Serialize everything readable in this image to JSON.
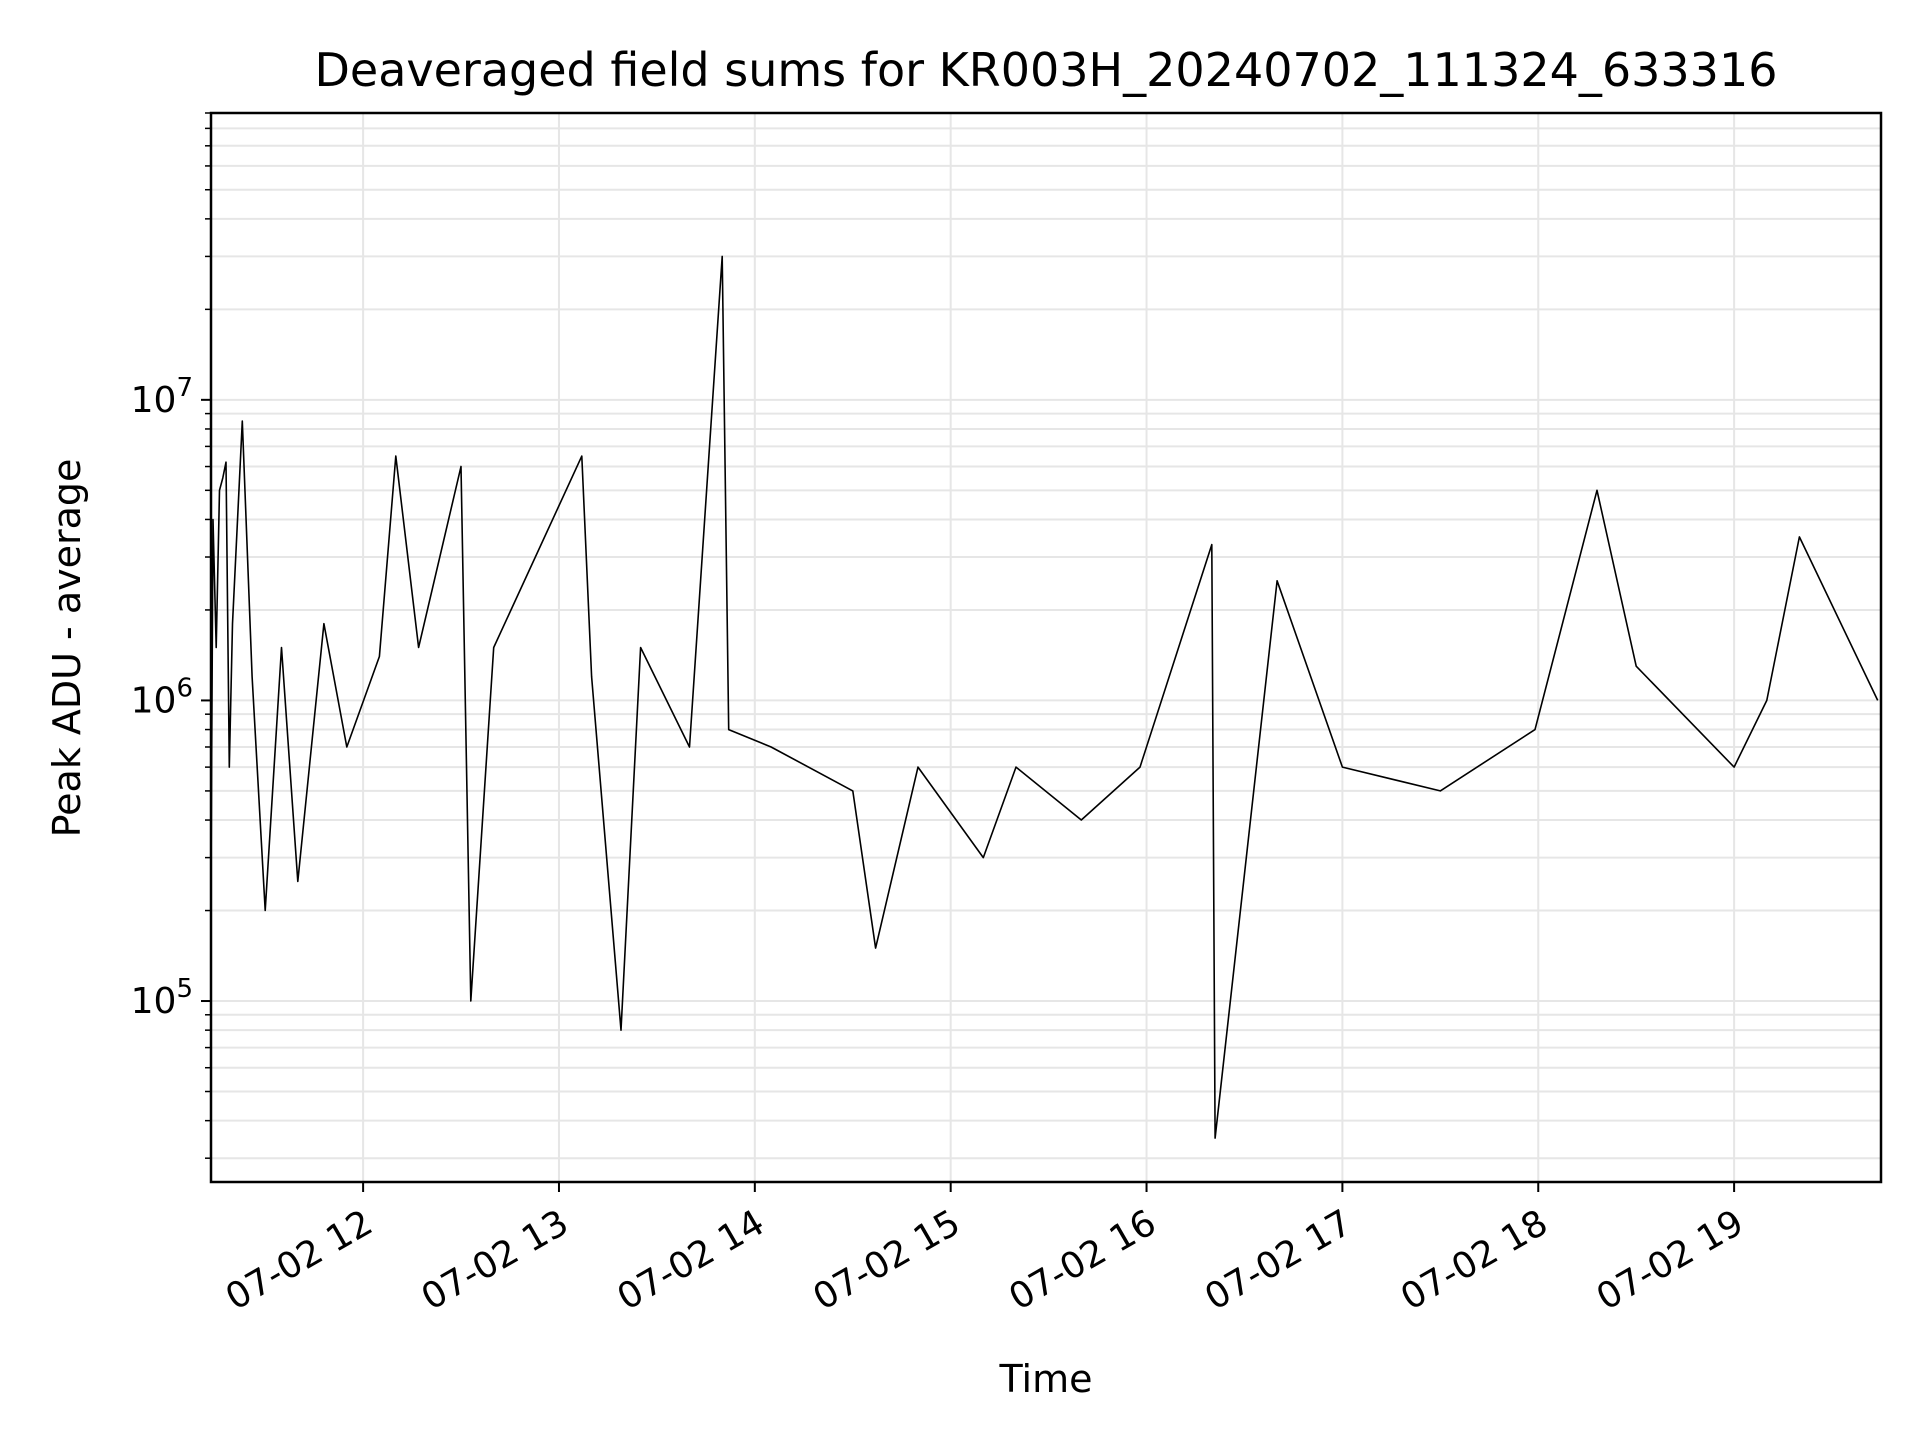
{
  "chart_data": {
    "type": "line",
    "title": "Deaveraged field sums for KR003H_20240702_111324_633316",
    "xlabel": "Time",
    "ylabel": "Peak ADU - average",
    "yscale": "log",
    "xlim": [
      "2024-07-02T11:13:24",
      "2024-07-02T19:45:00"
    ],
    "ylim": [
      25000,
      90000000
    ],
    "grid": true,
    "line_color": "#000000",
    "x_tick_labels": [
      "07-02 12",
      "07-02 13",
      "07-02 14",
      "07-02 15",
      "07-02 16",
      "07-02 17",
      "07-02 18",
      "07-02 19"
    ],
    "x_tick_times": [
      "2024-07-02T12:00",
      "2024-07-02T13:00",
      "2024-07-02T14:00",
      "2024-07-02T15:00",
      "2024-07-02T16:00",
      "2024-07-02T17:00",
      "2024-07-02T18:00",
      "2024-07-02T19:00"
    ],
    "y_ticks": [
      {
        "value": 100000,
        "base": "10",
        "exp": "5"
      },
      {
        "value": 1000000,
        "base": "10",
        "exp": "6"
      },
      {
        "value": 10000000,
        "base": "10",
        "exp": "7"
      }
    ],
    "series": [
      {
        "x": [
          "2024-07-02T11:13:24",
          "2024-07-02T11:14:00",
          "2024-07-02T11:15:00",
          "2024-07-02T11:16:00",
          "2024-07-02T11:17:00",
          "2024-07-02T11:18:00",
          "2024-07-02T11:19:00",
          "2024-07-02T11:20:00",
          "2024-07-02T11:23:00",
          "2024-07-02T11:26:00",
          "2024-07-02T11:30:00",
          "2024-07-02T11:35:00",
          "2024-07-02T11:40:00",
          "2024-07-02T11:48:00",
          "2024-07-02T11:55:00",
          "2024-07-02T12:05:00",
          "2024-07-02T12:10:00",
          "2024-07-02T12:17:00",
          "2024-07-02T12:30:00",
          "2024-07-02T12:33:00",
          "2024-07-02T12:40:00",
          "2024-07-02T13:07:00",
          "2024-07-02T13:10:00",
          "2024-07-02T13:19:00",
          "2024-07-02T13:25:00",
          "2024-07-02T13:40:00",
          "2024-07-02T13:50:00",
          "2024-07-02T13:52:00",
          "2024-07-02T14:05:00",
          "2024-07-02T14:30:00",
          "2024-07-02T14:37:00",
          "2024-07-02T14:50:00",
          "2024-07-02T15:10:00",
          "2024-07-02T15:20:00",
          "2024-07-02T15:40:00",
          "2024-07-02T15:58:00",
          "2024-07-02T16:20:00",
          "2024-07-02T16:21:00",
          "2024-07-02T16:40:00",
          "2024-07-02T17:00:00",
          "2024-07-02T17:30:00",
          "2024-07-02T17:59:00",
          "2024-07-02T18:18:00",
          "2024-07-02T18:30:00",
          "2024-07-02T19:00:00",
          "2024-07-02T19:10:00",
          "2024-07-02T19:20:00",
          "2024-07-02T19:44:00"
        ],
        "y": [
          250000,
          4000000,
          1500000,
          5000000,
          5500000,
          6200000,
          600000,
          1800000,
          8500000,
          1200000,
          200000,
          1500000,
          250000,
          1800000,
          700000,
          1400000,
          6500000,
          1500000,
          6000000,
          100000,
          1500000,
          6500000,
          1200000,
          80000,
          1500000,
          700000,
          30000000,
          800000,
          700000,
          500000,
          150000,
          600000,
          300000,
          600000,
          400000,
          600000,
          3300000,
          35000,
          2500000,
          600000,
          500000,
          800000,
          5000000,
          1300000,
          600000,
          1000000,
          3500000,
          1000000
        ]
      }
    ]
  }
}
